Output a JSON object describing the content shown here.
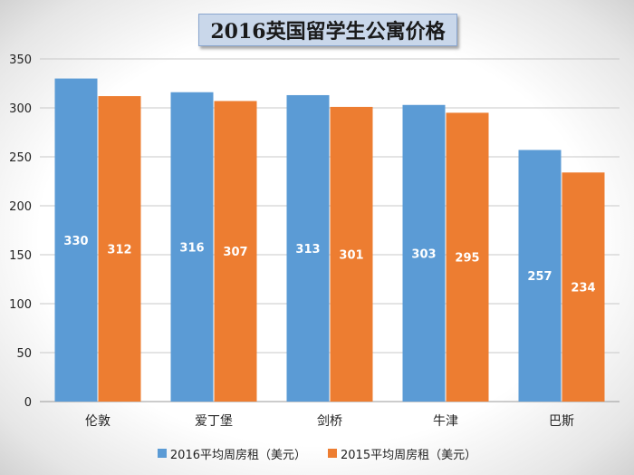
{
  "chart_data": {
    "type": "bar",
    "title": "2016英国留学生公寓价格",
    "categories": [
      "伦敦",
      "爱丁堡",
      "剑桥",
      "牛津",
      "巴斯"
    ],
    "series": [
      {
        "name": "2016平均周房租（美元）",
        "values": [
          330,
          316,
          313,
          303,
          257
        ],
        "color": "#5b9bd5"
      },
      {
        "name": "2015平均周房租（美元）",
        "values": [
          312,
          307,
          301,
          295,
          234
        ],
        "color": "#ed7d31"
      }
    ],
    "ylim": [
      0,
      350
    ],
    "yticks": [
      0,
      50,
      100,
      150,
      200,
      250,
      300,
      350
    ],
    "grid": true,
    "legend_position": "bottom",
    "data_labels": true
  }
}
